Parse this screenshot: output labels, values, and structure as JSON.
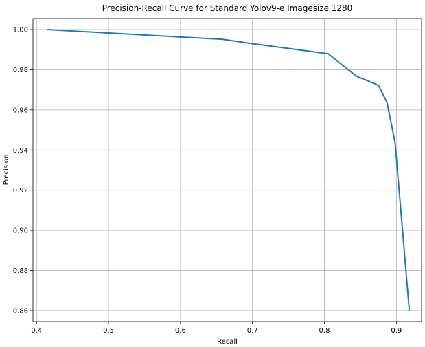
{
  "chart_data": {
    "type": "line",
    "title": "Precision-Recall Curve for Standard Yolov9-e Imagesize 1280",
    "xlabel": "Recall",
    "ylabel": "Precision",
    "xlim": [
      0.395,
      0.935
    ],
    "ylim": [
      0.8545,
      1.0055
    ],
    "xticks": [
      0.4,
      0.5,
      0.6,
      0.7,
      0.8,
      0.9
    ],
    "xtick_labels": [
      "0.4",
      "0.5",
      "0.6",
      "0.7",
      "0.8",
      "0.9"
    ],
    "yticks": [
      0.86,
      0.88,
      0.9,
      0.92,
      0.94,
      0.96,
      0.98,
      1.0
    ],
    "ytick_labels": [
      "0.86",
      "0.88",
      "0.90",
      "0.92",
      "0.94",
      "0.96",
      "0.98",
      "1.00"
    ],
    "grid": true,
    "series": [
      {
        "color": "#1f77b4",
        "x": [
          0.415,
          0.5,
          0.6,
          0.658,
          0.7,
          0.8,
          0.805,
          0.845,
          0.875,
          0.887,
          0.898,
          0.899,
          0.918
        ],
        "y": [
          1.0,
          0.9983,
          0.9963,
          0.9952,
          0.993,
          0.9882,
          0.988,
          0.9767,
          0.9723,
          0.9637,
          0.944,
          0.9405,
          0.86
        ]
      }
    ]
  }
}
